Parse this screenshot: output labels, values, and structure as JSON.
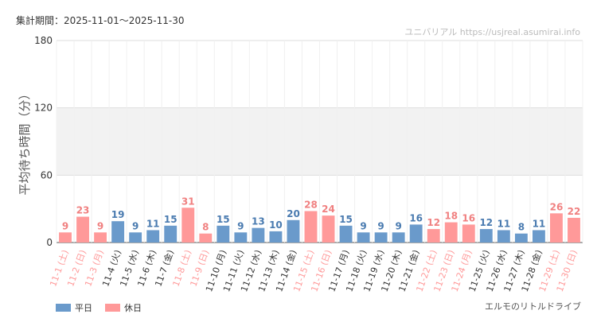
{
  "header": {
    "period": "集計期間：2025-11-01～2025-11-30",
    "source": "ユニバリアル  https://usjreal.asumirai.info"
  },
  "attraction": "エルモのリトルドライブ",
  "colors": {
    "weekday": "#6a9acb",
    "holiday": "#ff9999",
    "weekday_text": "#4a7bb0",
    "holiday_text": "#f08080",
    "band": "#f2f2f2"
  },
  "chart_data": {
    "type": "bar",
    "ylabel": "平均待ち時間（分）",
    "ylim": [
      0,
      180
    ],
    "yticks": [
      0,
      60,
      120,
      180
    ],
    "grid": true,
    "legend_position": "bottom-left",
    "legend": [
      {
        "label": "平日",
        "kind": "weekday"
      },
      {
        "label": "休日",
        "kind": "holiday"
      }
    ],
    "categories": [
      "11-1 (土)",
      "11-2 (日)",
      "11-3 (月)",
      "11-4 (火)",
      "11-5 (水)",
      "11-6 (木)",
      "11-7 (金)",
      "11-8 (土)",
      "11-9 (日)",
      "11-10 (月)",
      "11-11 (火)",
      "11-12 (水)",
      "11-13 (木)",
      "11-14 (金)",
      "11-15 (土)",
      "11-16 (日)",
      "11-17 (月)",
      "11-18 (火)",
      "11-19 (水)",
      "11-20 (木)",
      "11-21 (金)",
      "11-22 (土)",
      "11-23 (日)",
      "11-24 (月)",
      "11-25 (火)",
      "11-26 (水)",
      "11-27 (木)",
      "11-28 (金)",
      "11-29 (土)",
      "11-30 (日)"
    ],
    "values": [
      9,
      23,
      9,
      19,
      9,
      11,
      15,
      31,
      8,
      15,
      9,
      13,
      10,
      20,
      28,
      24,
      15,
      9,
      9,
      9,
      16,
      12,
      18,
      16,
      12,
      11,
      8,
      11,
      26,
      22
    ],
    "day_types": [
      "holiday",
      "holiday",
      "holiday",
      "weekday",
      "weekday",
      "weekday",
      "weekday",
      "holiday",
      "holiday",
      "weekday",
      "weekday",
      "weekday",
      "weekday",
      "weekday",
      "holiday",
      "holiday",
      "weekday",
      "weekday",
      "weekday",
      "weekday",
      "weekday",
      "holiday",
      "holiday",
      "holiday",
      "weekday",
      "weekday",
      "weekday",
      "weekday",
      "holiday",
      "holiday"
    ]
  }
}
